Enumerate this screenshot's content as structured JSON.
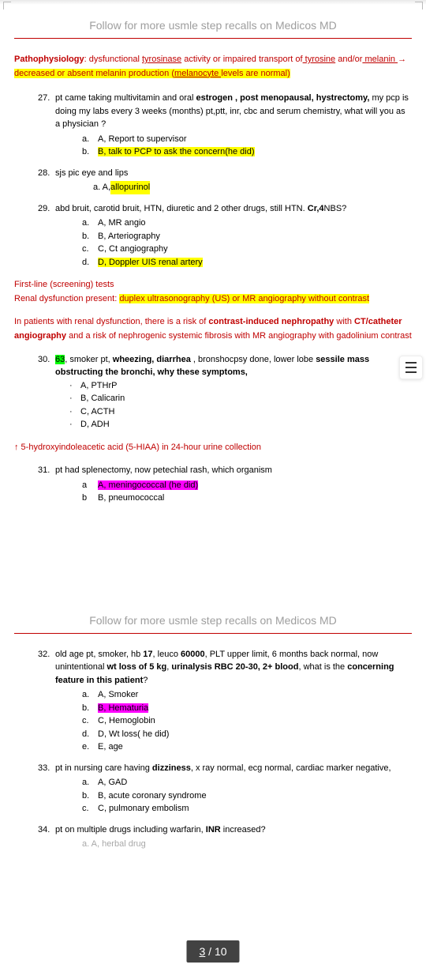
{
  "header": "Follow for more usmle step recalls on Medicos MD",
  "patho": {
    "lead": "Pathophysiology",
    "t1": ": dysfunctional ",
    "tyrosinase": "tyrosinase",
    "t2": " activity or impaired transport of",
    "tyrosine": " tyrosine",
    "t3": " and/or",
    "melanin": " melanin ",
    "arrow": "→",
    "hl1": " decreased or absent melanin production ",
    "paren_open": "(",
    "melanocyte": "melanocyte ",
    "t4": "levels are normal)"
  },
  "q27": {
    "num": "27.",
    "text1": "pt came taking multivitamin and oral ",
    "b1": "estrogen , post menopausal, hystrectomy,",
    "text2": " my pcp is doing my labs every 3 weeks (months) pt,ptt, inr, cbc and serum chemistry, what will you as a physician ?",
    "a_l": "a.",
    "a_t": "A, Report to supervisor",
    "b_l": "b.",
    "b_t": "B, talk to PCP to ask the concern(he did)"
  },
  "q28": {
    "num": "28.",
    "text": "sjs pic eye and lips",
    "a_l": "a. A,",
    "a_t": " allopurinol"
  },
  "q29": {
    "num": "29.",
    "text1": "abd bruit, carotid bruit, HTN, diuretic and 2 other drugs, still HTN. ",
    "b1": "Cr,4",
    "text2": "NBS?",
    "a_l": "a.",
    "a_t": "A, MR angio",
    "b_l": "b.",
    "b_t": "B, Arteriography",
    "c_l": "c.",
    "c_t": "C, Ct angiography",
    "d_l": "d.",
    "d_t": "D, Doppler UIS renal artery"
  },
  "note29": {
    "l1": "First-line (screening) tests",
    "l2a": "Renal dysfunction present: ",
    "l2b": "duplex ultrasonography (US) or MR angiography without contrast",
    "p2a": "In patients with renal dysfunction, there is a risk of ",
    "p2b": "contrast-induced nephropathy",
    "p2c": " with ",
    "p2d": "CT/catheter angiography",
    "p2e": " and a risk of nephrogenic systemic fibrosis with MR angiography with gadolinium contrast"
  },
  "q30": {
    "num": "30.",
    "g": "63",
    "t1": ", smoker pt, ",
    "b1": "wheezing, diarrhea",
    "t2": " , bronshocpsy done, lower lobe ",
    "b2": "sessile mass obstructing the bronchi, why these symptoms,",
    "a_t": "A, PTHrP",
    "b_t": "B, Calicarin",
    "c_t": "C, ACTH",
    "d_t": "D, ADH"
  },
  "note30": "↑ 5-hydroxyindoleacetic acid (5-HIAA) in 24-hour urine collection",
  "q31": {
    "num": "31.",
    "text": "pt had splenectomy, now petechial rash, which organism",
    "a_l": "a",
    "a_t": "A, meningococcal (he did)",
    "b_l": "b",
    "b_t": "B, pneumococcal"
  },
  "q32": {
    "num": "32.",
    "t1": "old age pt, smoker, hb ",
    "b1": "17",
    "t2": ", leuco ",
    "b2": "60000",
    "t3": ", PLT upper limit, 6 months back normal, now unintentional ",
    "b3": "wt loss of 5 kg",
    "t4": ", ",
    "b4": "urinalysis RBC 20-30, 2+ blood",
    "t5": ", what is the ",
    "b5": "concerning feature in this patient",
    "t6": "?",
    "a_l": "a.",
    "a_t": "A, Smoker",
    "b_l": "b.",
    "b_t": "B, Hematuria",
    "c_l": "c.",
    "c_t": "C, Hemoglobin",
    "d_l": "d.",
    "d_t": "D, Wt loss( he did)",
    "e_l": "e.",
    "e_t": "E, age"
  },
  "q33": {
    "num": "33.",
    "t1": "pt in nursing care having ",
    "b1": "dizziness",
    "t2": ", x ray normal, ecg normal, cardiac marker negative,",
    "a_l": "a.",
    "a_t": "A, GAD",
    "b_l": "b.",
    "b_t": "B, acute coronary syndrome",
    "c_l": "c.",
    "c_t": "C, pulmonary embolism"
  },
  "q34": {
    "num": "34.",
    "t1": "pt on multiple drugs including warfarin, ",
    "b1": "INR",
    "t2": " increased?",
    "a_t": "a. A, herbal drug"
  },
  "pager": {
    "cur": "3",
    "sep": " / ",
    "total": "10"
  }
}
